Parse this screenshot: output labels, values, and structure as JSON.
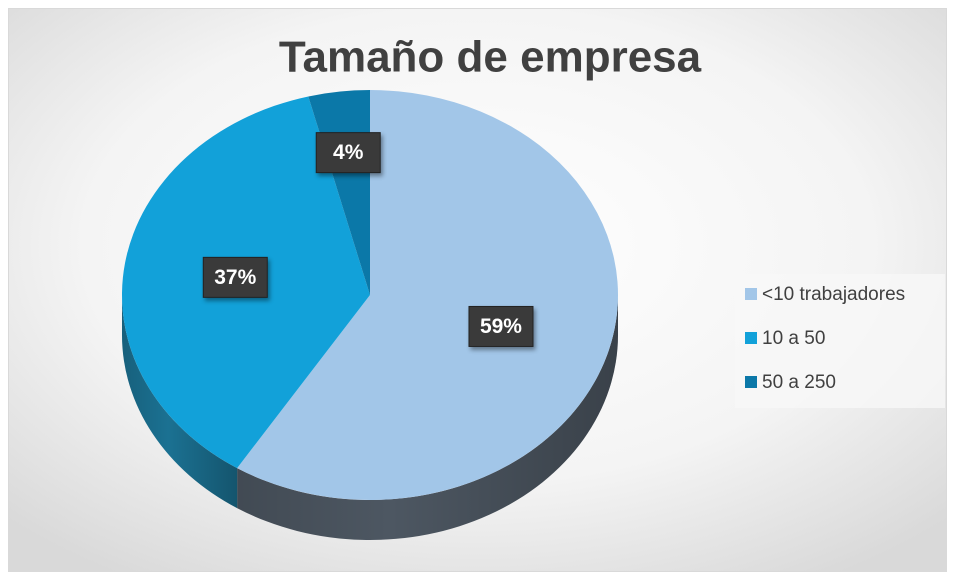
{
  "chart_data": {
    "type": "pie",
    "title": "Tamaño de empresa",
    "categories": [
      "<10 trabajadores",
      "10 a 50",
      "50 a 250"
    ],
    "values": [
      59,
      37,
      4
    ],
    "value_labels": [
      "59%",
      "37%",
      "4%"
    ],
    "colors": [
      "#a2c6e8",
      "#12a1d9",
      "#0b78a8"
    ],
    "legend": "right"
  }
}
